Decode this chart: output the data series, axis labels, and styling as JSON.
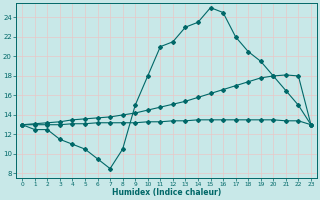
{
  "xlabel": "Humidex (Indice chaleur)",
  "ylabel": "",
  "xlim": [
    -0.5,
    23.5
  ],
  "ylim": [
    7.5,
    25.5
  ],
  "yticks": [
    8,
    10,
    12,
    14,
    16,
    18,
    20,
    22,
    24
  ],
  "xticks": [
    0,
    1,
    2,
    3,
    4,
    5,
    6,
    7,
    8,
    9,
    10,
    11,
    12,
    13,
    14,
    15,
    16,
    17,
    18,
    19,
    20,
    21,
    22,
    23
  ],
  "bg_color": "#c8e8e8",
  "line_color": "#006868",
  "grid_color": "#b0d8d8",
  "line1_x": [
    0,
    1,
    2,
    3,
    4,
    5,
    6,
    7,
    8,
    9,
    10,
    11,
    12,
    13,
    14,
    15,
    16,
    17,
    18,
    19,
    20,
    21,
    22,
    23
  ],
  "line1_y": [
    13.0,
    12.5,
    12.5,
    11.5,
    11.0,
    10.5,
    9.5,
    8.5,
    10.5,
    15.0,
    18.0,
    21.0,
    21.5,
    23.0,
    23.5,
    25.0,
    24.5,
    22.0,
    20.5,
    19.5,
    18.0,
    16.5,
    15.0,
    13.0
  ],
  "line2_x": [
    0,
    1,
    2,
    3,
    4,
    5,
    6,
    7,
    8,
    9,
    10,
    11,
    12,
    13,
    14,
    15,
    16,
    17,
    18,
    19,
    20,
    21,
    22,
    23
  ],
  "line2_y": [
    13.0,
    13.1,
    13.2,
    13.3,
    13.5,
    13.6,
    13.7,
    13.8,
    14.0,
    14.2,
    14.5,
    14.8,
    15.1,
    15.4,
    15.8,
    16.2,
    16.6,
    17.0,
    17.4,
    17.8,
    18.0,
    18.1,
    18.0,
    13.0
  ],
  "line3_x": [
    0,
    1,
    2,
    3,
    4,
    5,
    6,
    7,
    8,
    9,
    10,
    11,
    12,
    13,
    14,
    15,
    16,
    17,
    18,
    19,
    20,
    21,
    22,
    23
  ],
  "line3_y": [
    13.0,
    13.0,
    13.0,
    13.0,
    13.1,
    13.1,
    13.2,
    13.2,
    13.2,
    13.2,
    13.3,
    13.3,
    13.4,
    13.4,
    13.5,
    13.5,
    13.5,
    13.5,
    13.5,
    13.5,
    13.5,
    13.4,
    13.4,
    13.0
  ]
}
